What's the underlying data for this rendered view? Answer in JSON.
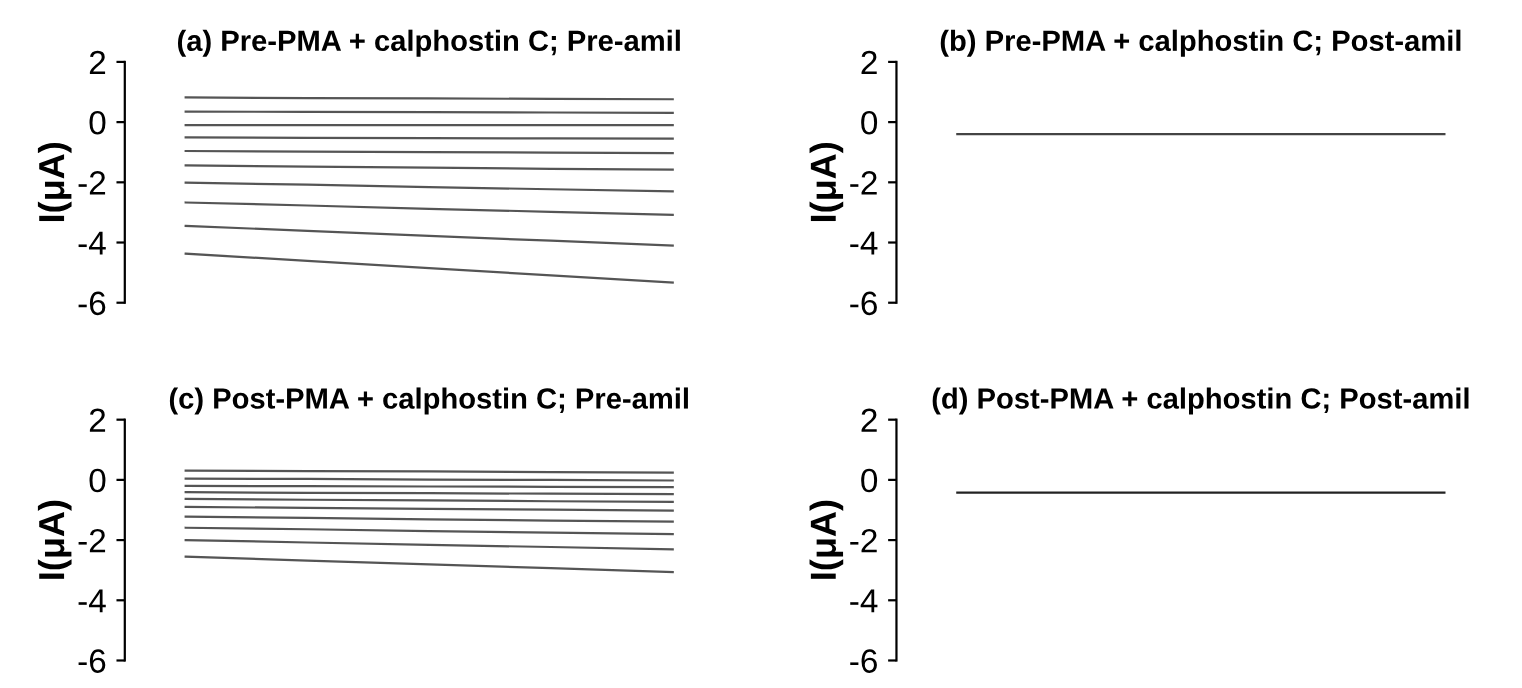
{
  "chart_data": [
    {
      "type": "line",
      "title": "(a) Pre-PMA + calphostin C; Pre-amil",
      "ylabel": "I(μA)",
      "categories": [
        null,
        null,
        null,
        null,
        null
      ],
      "ylim": [
        -6,
        2
      ],
      "yticks": [
        -6,
        -4,
        -2,
        0,
        2
      ],
      "tick_labels": "y",
      "marker": "none",
      "line_style": "solid",
      "series": [
        {
          "color": "#555555",
          "values": [
            0.82,
            0.8,
            0.79,
            0.77,
            0.76
          ]
        },
        {
          "color": "#555555",
          "values": [
            0.35,
            0.34,
            0.33,
            0.32,
            0.31
          ]
        },
        {
          "color": "#555555",
          "values": [
            -0.1,
            -0.1,
            -0.1,
            -0.1,
            -0.1
          ]
        },
        {
          "color": "#555555",
          "values": [
            -0.51,
            -0.52,
            -0.53,
            -0.54,
            -0.55
          ]
        },
        {
          "color": "#555555",
          "values": [
            -0.96,
            -0.98,
            -1.0,
            -1.01,
            -1.03
          ]
        },
        {
          "color": "#555555",
          "values": [
            -1.44,
            -1.48,
            -1.51,
            -1.55,
            -1.58
          ]
        },
        {
          "color": "#555555",
          "values": [
            -2.01,
            -2.08,
            -2.16,
            -2.23,
            -2.3
          ]
        },
        {
          "color": "#555555",
          "values": [
            -2.67,
            -2.77,
            -2.88,
            -2.98,
            -3.08
          ]
        },
        {
          "color": "#555555",
          "values": [
            -3.45,
            -3.61,
            -3.78,
            -3.94,
            -4.1
          ]
        },
        {
          "color": "#555555",
          "values": [
            -4.37,
            -4.61,
            -4.85,
            -5.09,
            -5.33
          ]
        }
      ]
    },
    {
      "type": "line",
      "title": "(b) Pre-PMA + calphostin C; Post-amil",
      "ylabel": "I(μA)",
      "categories": [
        null,
        null,
        null,
        null,
        null
      ],
      "ylim": [
        -6,
        2
      ],
      "yticks": [
        -6,
        -4,
        -2,
        0,
        2
      ],
      "tick_labels": "y",
      "marker": "none",
      "line_style": "solid",
      "series": [
        {
          "color": "#444444",
          "values": [
            -0.4,
            -0.4,
            -0.4,
            -0.4,
            -0.4
          ]
        }
      ]
    },
    {
      "type": "line",
      "title": "(c) Post-PMA + calphostin C; Pre-amil",
      "ylabel": "I(μA)",
      "categories": [
        null,
        null,
        null,
        null,
        null
      ],
      "ylim": [
        -6,
        2
      ],
      "yticks": [
        -6,
        -4,
        -2,
        0,
        2
      ],
      "tick_labels": "y",
      "marker": "none",
      "line_style": "solid",
      "series": [
        {
          "color": "#555555",
          "values": [
            0.31,
            0.29,
            0.28,
            0.26,
            0.24
          ]
        },
        {
          "color": "#555555",
          "values": [
            0.04,
            0.03,
            0.01,
            0.0,
            -0.02
          ]
        },
        {
          "color": "#555555",
          "values": [
            -0.2,
            -0.21,
            -0.22,
            -0.23,
            -0.24
          ]
        },
        {
          "color": "#555555",
          "values": [
            -0.41,
            -0.43,
            -0.44,
            -0.46,
            -0.47
          ]
        },
        {
          "color": "#555555",
          "values": [
            -0.63,
            -0.66,
            -0.68,
            -0.71,
            -0.73
          ]
        },
        {
          "color": "#555555",
          "values": [
            -0.9,
            -0.93,
            -0.96,
            -0.99,
            -1.02
          ]
        },
        {
          "color": "#555555",
          "values": [
            -1.22,
            -1.26,
            -1.31,
            -1.35,
            -1.39
          ]
        },
        {
          "color": "#555555",
          "values": [
            -1.59,
            -1.64,
            -1.7,
            -1.75,
            -1.8
          ]
        },
        {
          "color": "#555555",
          "values": [
            -2.0,
            -2.08,
            -2.16,
            -2.23,
            -2.31
          ]
        },
        {
          "color": "#555555",
          "values": [
            -2.55,
            -2.68,
            -2.81,
            -2.93,
            -3.06
          ]
        }
      ]
    },
    {
      "type": "line",
      "title": "(d) Post-PMA + calphostin C; Post-amil",
      "ylabel": "I(μA)",
      "categories": [
        null,
        null,
        null,
        null,
        null
      ],
      "ylim": [
        -6,
        2
      ],
      "yticks": [
        -6,
        -4,
        -2,
        0,
        2
      ],
      "tick_labels": "y",
      "marker": "none",
      "line_style": "solid",
      "series": [
        {
          "color": "#222222",
          "values": [
            -0.42,
            -0.42,
            -0.42,
            -0.42,
            -0.42
          ]
        }
      ]
    }
  ]
}
